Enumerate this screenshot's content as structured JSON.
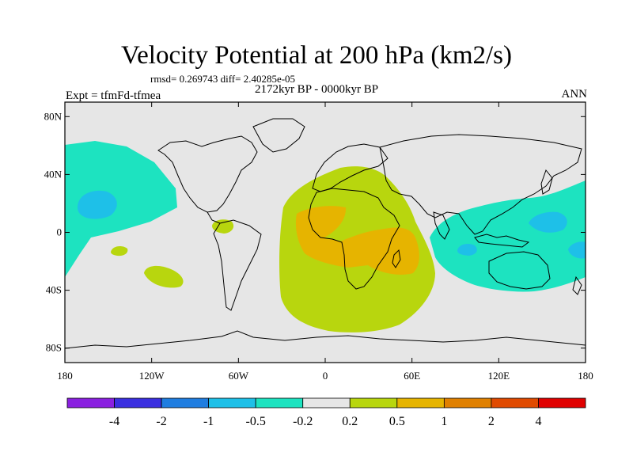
{
  "header": {
    "title": "Velocity Potential at 200 hPa (km2/s)",
    "stats": "rmsd= 0.269743 diff= 2.40285e-05",
    "subtitle": "2172kyr BP - 0000kyr BP",
    "left_label": "Expt = tfmFd-tfmea",
    "right_label": "ANN"
  },
  "axes": {
    "lat_ticks": [
      {
        "value": 80,
        "label": "80N"
      },
      {
        "value": 40,
        "label": "40N"
      },
      {
        "value": 0,
        "label": "0"
      },
      {
        "value": -40,
        "label": "40S"
      },
      {
        "value": -80,
        "label": "80S"
      }
    ],
    "lon_ticks": [
      {
        "value": -180,
        "label": "180"
      },
      {
        "value": -120,
        "label": "120W"
      },
      {
        "value": -60,
        "label": "60W"
      },
      {
        "value": 0,
        "label": "0"
      },
      {
        "value": 60,
        "label": "60E"
      },
      {
        "value": 120,
        "label": "120E"
      },
      {
        "value": 180,
        "label": "180"
      }
    ],
    "lon_range": [
      -180,
      180
    ],
    "lat_range": [
      -90,
      90
    ]
  },
  "colorbar": {
    "colors": [
      "#8a20e0",
      "#3a2fe0",
      "#1f7de0",
      "#1ec0e8",
      "#1de3c0",
      "#e6e6e6",
      "#b8d60e",
      "#e6b400",
      "#e08000",
      "#e04a00",
      "#e00000"
    ],
    "labels": [
      "-4",
      "-2",
      "-1",
      "-0.5",
      "-0.2",
      "0.2",
      "0.5",
      "1",
      "2",
      "4"
    ]
  },
  "colors": {
    "background": "#e6e6e6",
    "coast": "#000000",
    "neg_light": "#1de3c0",
    "neg_mid": "#1ec0e8",
    "pos_light": "#b8d60e",
    "pos_mid": "#e6b400"
  }
}
